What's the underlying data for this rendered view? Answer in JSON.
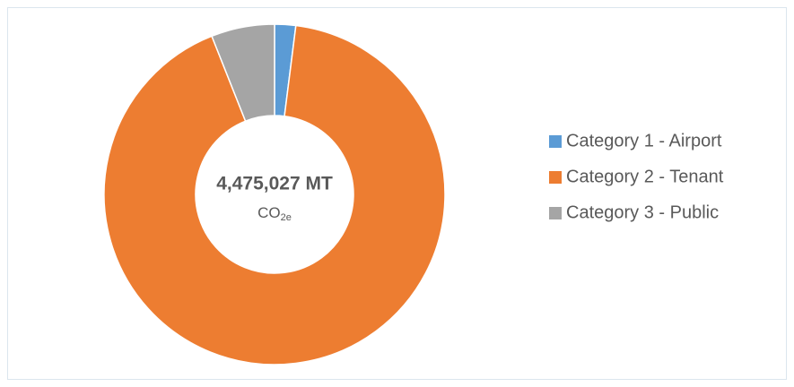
{
  "chart_data": {
    "type": "donut",
    "center_text": "4,475,027 MT",
    "center_unit": "CO",
    "center_unit_sub": "2e",
    "categories": [
      "Category 1 - Airport",
      "Category 2 - Tenant",
      "Category 3 - Public"
    ],
    "values": [
      2,
      92,
      6
    ],
    "colors": [
      "#5b9bd5",
      "#ed7d31",
      "#a5a5a5"
    ],
    "legend": "right"
  }
}
